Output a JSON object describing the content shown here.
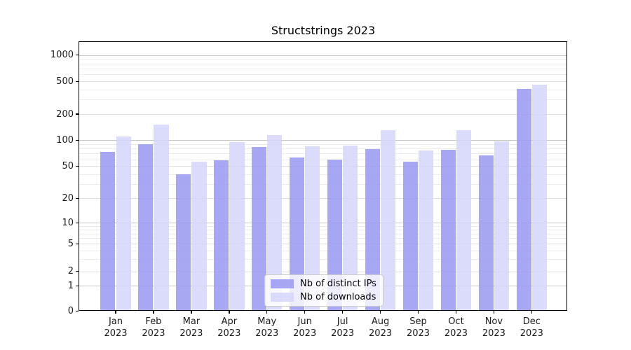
{
  "title": "Structstrings 2023",
  "chart_data": {
    "type": "bar",
    "title": "Structstrings 2023",
    "yscale": "asinh-log",
    "grid": true,
    "legend_position": "lower center",
    "months": [
      "Jan",
      "Feb",
      "Mar",
      "Apr",
      "May",
      "Jun",
      "Jul",
      "Aug",
      "Sep",
      "Oct",
      "Nov",
      "Dec"
    ],
    "year": "2023",
    "y_tick_values": [
      0,
      1,
      2,
      5,
      10,
      20,
      50,
      100,
      200,
      500,
      1000
    ],
    "y_tick_labels": [
      "0",
      "1",
      "2",
      "5",
      "10",
      "20",
      "50",
      "100",
      "200",
      "500",
      "1000"
    ],
    "ylim": [
      0,
      1450
    ],
    "series": [
      {
        "name": "Nb of distinct IPs",
        "color": "#9898f2",
        "values": [
          73,
          90,
          40,
          58,
          84,
          63,
          59,
          79,
          56,
          78,
          66,
          403
        ]
      },
      {
        "name": "Nb of downloads",
        "color": "#d5d5fa",
        "values": [
          110,
          150,
          56,
          95,
          115,
          85,
          87,
          131,
          76,
          130,
          97,
          458
        ]
      }
    ],
    "colors": {
      "bar_distinct_ips": "#9898f2",
      "bar_downloads": "#d5d5fa",
      "grid_major": "#c6c6c6",
      "grid_minor": "#ededed",
      "spine": "#000000",
      "background": "#ffffff"
    }
  }
}
